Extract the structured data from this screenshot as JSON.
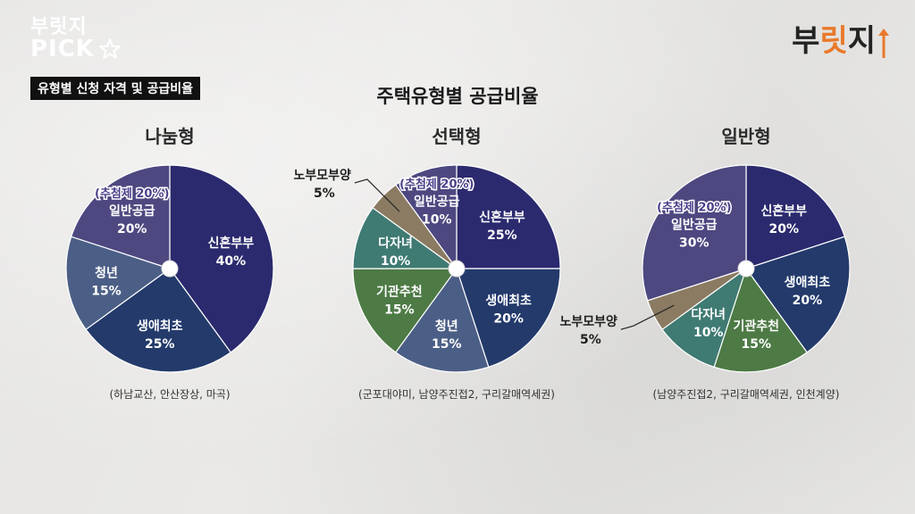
{
  "brand": {
    "line1": "부릿지",
    "line2": "PICK",
    "logo": "부릿지",
    "logo_accent": "릿"
  },
  "header": {
    "tag": "유형별 신청 자격 및 공급비율",
    "title": "주택유형별 공급비율"
  },
  "colors": {
    "신혼부부": "#2b2a6e",
    "생애최초": "#233a6b",
    "청년": "#4b5f86",
    "일반공급": "#4d4880",
    "기관추천": "#4d7a45",
    "다자녀": "#3f7a73",
    "노부모부양": "#8b7b62",
    "divider": "#ffffff"
  },
  "chart_data": [
    {
      "type": "pie",
      "title": "나눔형",
      "slices": [
        {
          "label": "신혼부부",
          "value": 40
        },
        {
          "label": "생애최초",
          "value": 25
        },
        {
          "label": "청년",
          "value": 15
        },
        {
          "label": "일반공급",
          "value": 20,
          "note": "(추첨제 20%)"
        }
      ],
      "footnote": "(하남교산, 안산장상, 마곡)"
    },
    {
      "type": "pie",
      "title": "선택형",
      "slices": [
        {
          "label": "신혼부부",
          "value": 25
        },
        {
          "label": "생애최초",
          "value": 20
        },
        {
          "label": "청년",
          "value": 15
        },
        {
          "label": "기관추천",
          "value": 15
        },
        {
          "label": "다자녀",
          "value": 10
        },
        {
          "label": "노부모부양",
          "value": 5
        },
        {
          "label": "일반공급",
          "value": 10,
          "note": "(추첨제 20%)"
        }
      ],
      "footnote": "(군포대야미, 남양주진접2, 구리갈매역세권)"
    },
    {
      "type": "pie",
      "title": "일반형",
      "slices": [
        {
          "label": "신혼부부",
          "value": 20
        },
        {
          "label": "생애최초",
          "value": 20
        },
        {
          "label": "기관추천",
          "value": 15
        },
        {
          "label": "다자녀",
          "value": 10
        },
        {
          "label": "노부모부양",
          "value": 5
        },
        {
          "label": "일반공급",
          "value": 30,
          "note": "(추첨제 20%)"
        }
      ],
      "footnote": "(남양주진접2, 구리갈매역세권, 인천계양)"
    }
  ]
}
